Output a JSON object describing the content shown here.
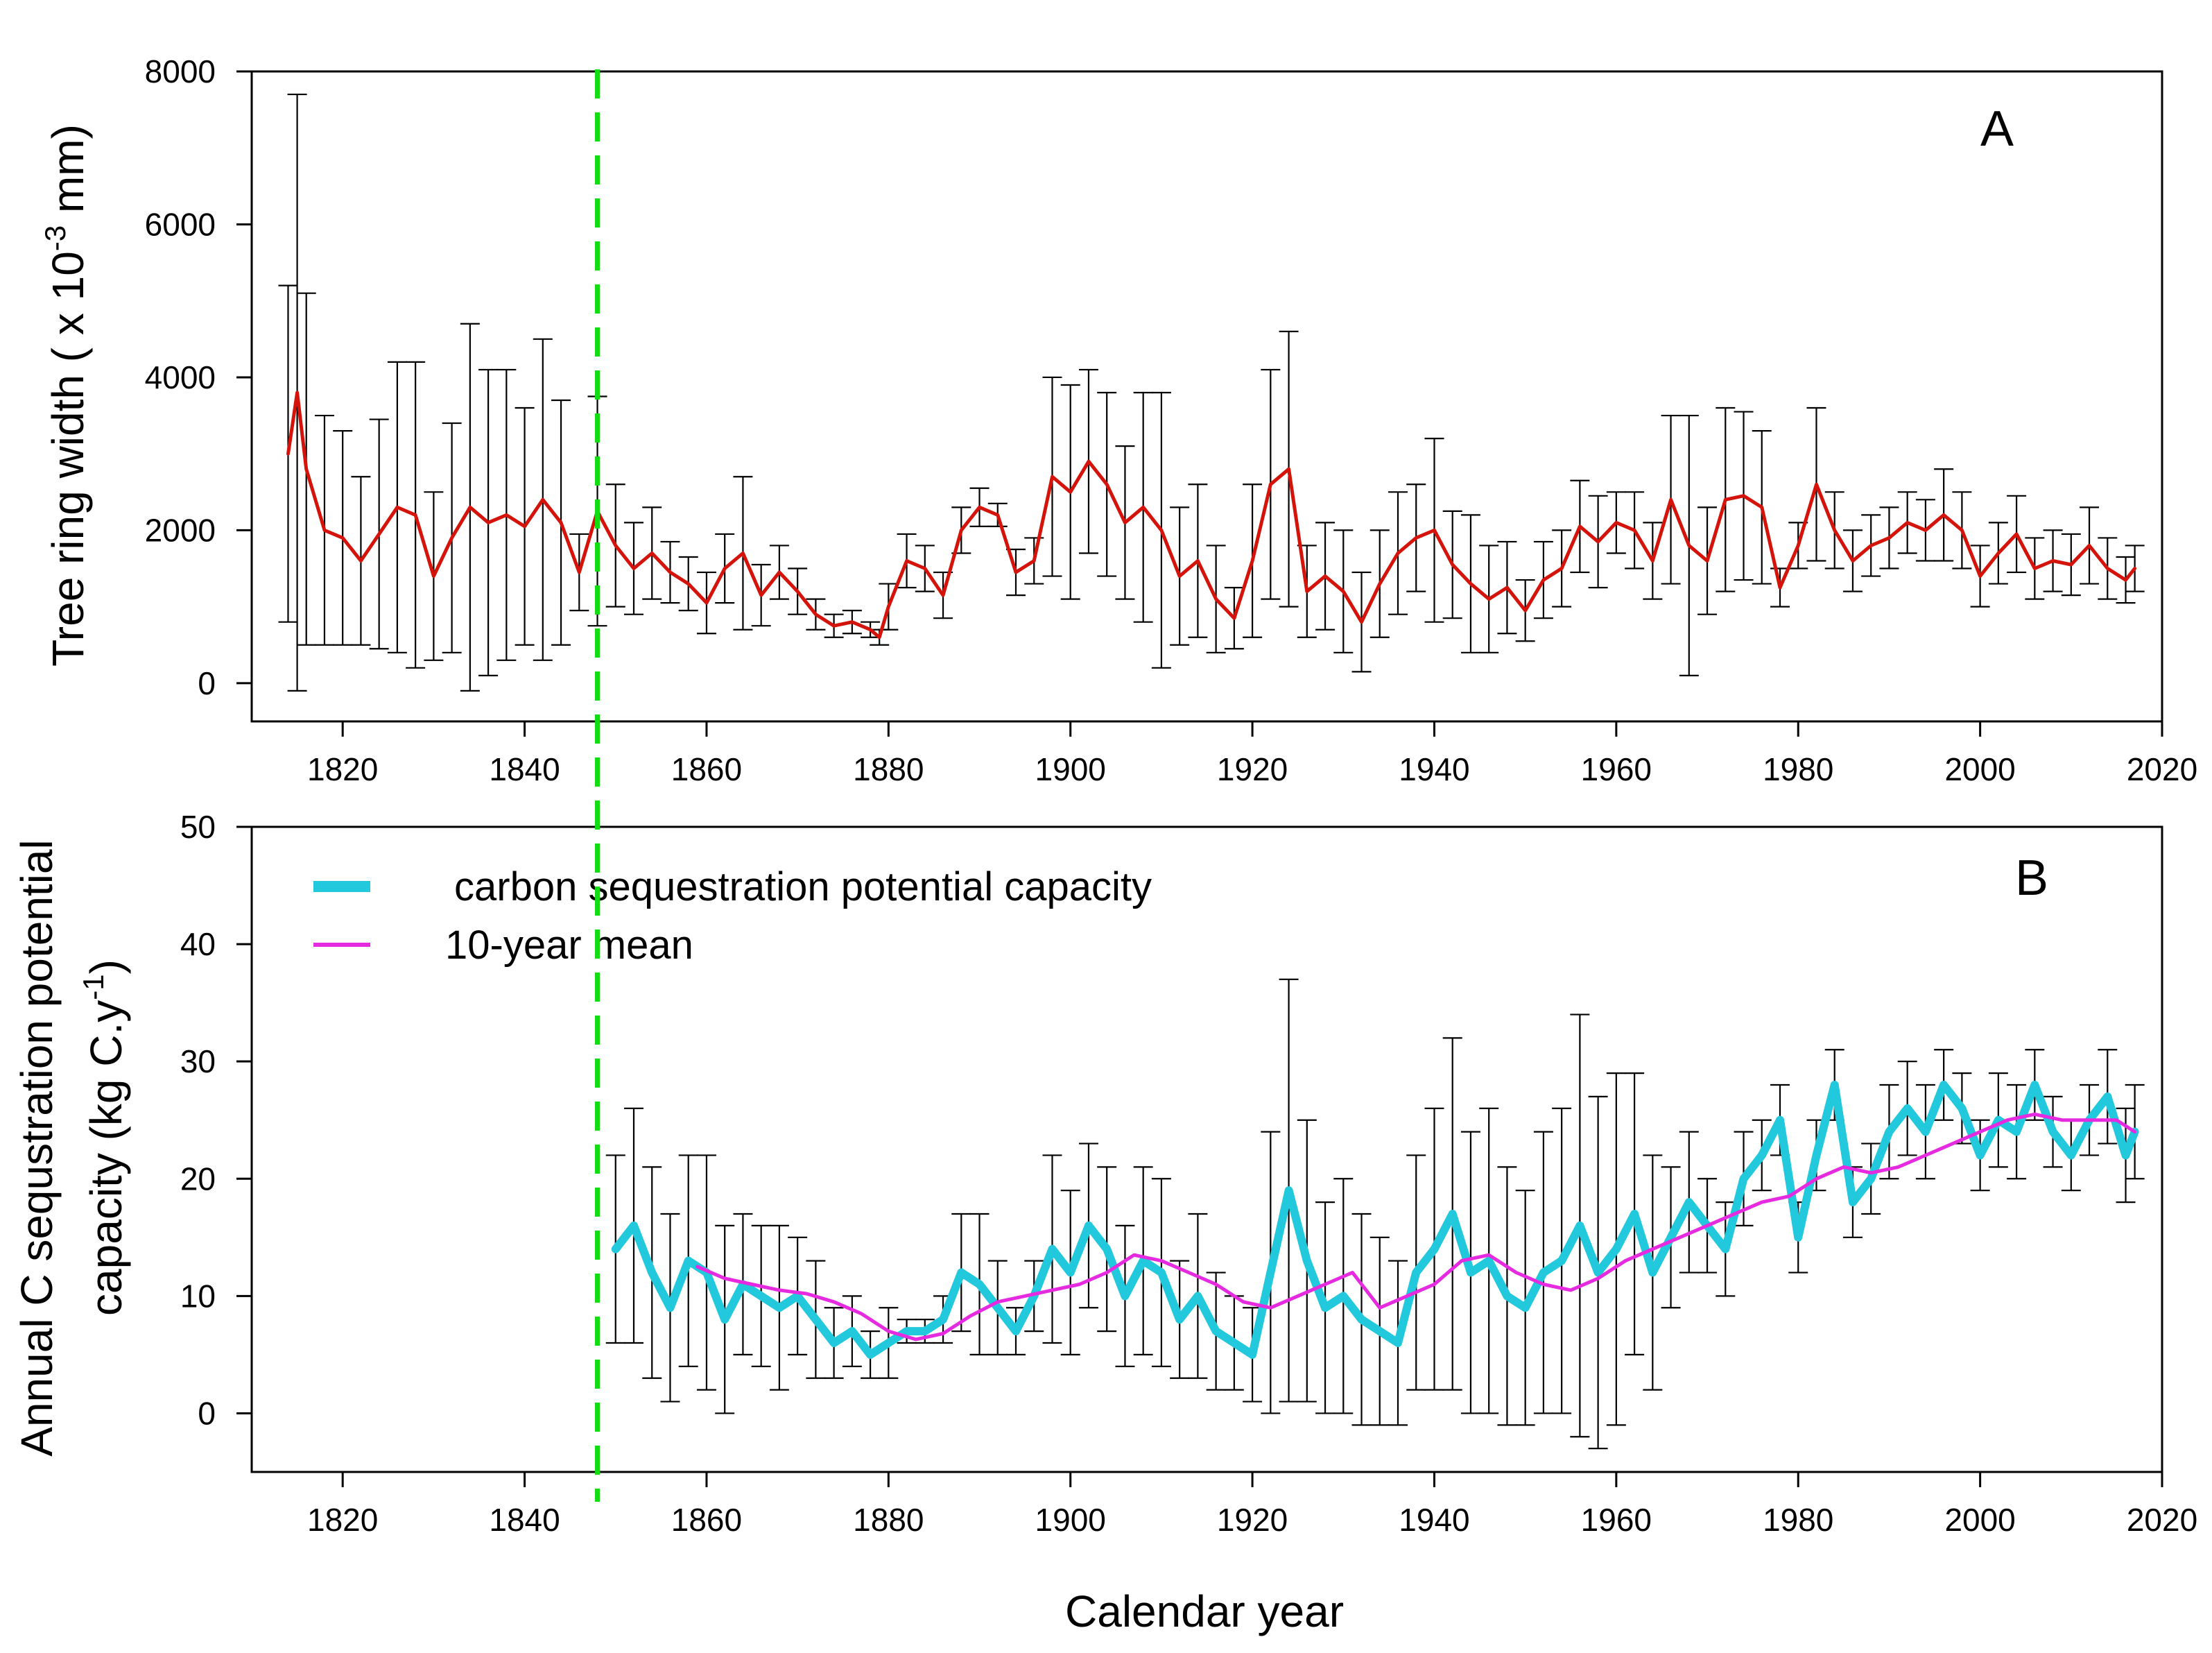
{
  "chart_data": [
    {
      "id": "A",
      "type": "line",
      "panel_label": "A",
      "title": "",
      "xlabel": "",
      "ylabel_prefix": "Tree ring width ( x 10",
      "ylabel_exponent": "-3",
      "ylabel_suffix": " mm)",
      "xlim": [
        1810,
        2020
      ],
      "ylim": [
        -500,
        8000
      ],
      "yticks": [
        "0",
        "2000",
        "4000",
        "6000",
        "8000"
      ],
      "xticks": [
        "1820",
        "1840",
        "1860",
        "1880",
        "1900",
        "1920",
        "1940",
        "1960",
        "1980",
        "2000",
        "2020"
      ],
      "marker_year": 1848,
      "series": [
        {
          "name": "Tree ring width",
          "color": "#d4140a",
          "error_color": "#000000",
          "x": [
            1814,
            1815,
            1816,
            1818,
            1820,
            1822,
            1824,
            1826,
            1828,
            1830,
            1832,
            1834,
            1836,
            1838,
            1840,
            1842,
            1844,
            1846,
            1848,
            1850,
            1852,
            1854,
            1856,
            1858,
            1860,
            1862,
            1864,
            1866,
            1868,
            1870,
            1872,
            1874,
            1876,
            1878,
            1879,
            1880,
            1882,
            1884,
            1886,
            1888,
            1890,
            1892,
            1894,
            1896,
            1898,
            1900,
            1902,
            1904,
            1906,
            1908,
            1910,
            1912,
            1914,
            1916,
            1918,
            1920,
            1922,
            1924,
            1926,
            1928,
            1930,
            1932,
            1934,
            1936,
            1938,
            1940,
            1942,
            1944,
            1946,
            1948,
            1950,
            1952,
            1954,
            1956,
            1958,
            1960,
            1962,
            1964,
            1966,
            1968,
            1970,
            1972,
            1974,
            1976,
            1978,
            1980,
            1982,
            1984,
            1986,
            1988,
            1990,
            1992,
            1994,
            1996,
            1998,
            2000,
            2002,
            2004,
            2006,
            2008,
            2010,
            2012,
            2014,
            2016,
            2017
          ],
          "y": [
            3000,
            3800,
            2800,
            2000,
            1900,
            1600,
            1950,
            2300,
            2200,
            1400,
            1900,
            2300,
            2100,
            2200,
            2050,
            2400,
            2100,
            1450,
            2250,
            1800,
            1500,
            1700,
            1450,
            1300,
            1050,
            1500,
            1700,
            1150,
            1450,
            1200,
            900,
            750,
            800,
            700,
            600,
            1000,
            1600,
            1500,
            1150,
            2000,
            2300,
            2200,
            1450,
            1600,
            2700,
            2500,
            2900,
            2600,
            2100,
            2300,
            2000,
            1400,
            1600,
            1100,
            850,
            1600,
            2600,
            2800,
            1200,
            1400,
            1200,
            800,
            1300,
            1700,
            1900,
            2000,
            1550,
            1300,
            1100,
            1250,
            950,
            1350,
            1500,
            2050,
            1850,
            2100,
            2000,
            1600,
            2400,
            1800,
            1600,
            2400,
            2450,
            2300,
            1250,
            1800,
            2600,
            2000,
            1600,
            1800,
            1900,
            2100,
            2000,
            2200,
            2000,
            1400,
            1700,
            1950,
            1500,
            1600,
            1550,
            1800,
            1500,
            1350,
            1500
          ],
          "err": [
            2200,
            3900,
            2300,
            1500,
            1400,
            1100,
            1500,
            1900,
            2000,
            1100,
            1500,
            2400,
            2000,
            1900,
            1550,
            2100,
            1600,
            500,
            1500,
            800,
            600,
            600,
            400,
            350,
            400,
            450,
            1000,
            400,
            350,
            300,
            200,
            150,
            150,
            100,
            100,
            300,
            350,
            300,
            300,
            300,
            250,
            150,
            300,
            300,
            1300,
            1400,
            1200,
            1200,
            1000,
            1500,
            1800,
            900,
            1000,
            700,
            400,
            1000,
            1500,
            1800,
            600,
            700,
            800,
            650,
            700,
            800,
            700,
            1200,
            700,
            900,
            700,
            600,
            400,
            500,
            500,
            600,
            600,
            400,
            500,
            500,
            1100,
            1700,
            700,
            1200,
            1100,
            1000,
            250,
            300,
            1000,
            500,
            400,
            400,
            400,
            400,
            400,
            600,
            500,
            400,
            400,
            500,
            400,
            400,
            400,
            500,
            400,
            300,
            300
          ]
        }
      ]
    },
    {
      "id": "B",
      "type": "line",
      "panel_label": "B",
      "title": "",
      "xlabel": "Calendar year",
      "ylabel_line1": "Annual C sequstration potential",
      "ylabel_line2_prefix": "capacity (kg C.y",
      "ylabel_line2_exponent": "-1",
      "ylabel_line2_suffix": ")",
      "xlim": [
        1810,
        2020
      ],
      "ylim": [
        -5,
        50
      ],
      "yticks": [
        "0",
        "10",
        "20",
        "30",
        "40",
        "50"
      ],
      "xticks": [
        "1820",
        "1840",
        "1860",
        "1880",
        "1900",
        "1920",
        "1940",
        "1960",
        "1980",
        "2000",
        "2020"
      ],
      "marker_year": 1848,
      "legend_position": "top-left",
      "legend": [
        {
          "label": "carbon sequestration potential capacity",
          "color": "#22c8dc"
        },
        {
          "label": "10-year mean",
          "color": "#e62ae0"
        }
      ],
      "series": [
        {
          "name": "carbon sequestration potential capacity",
          "color": "#22c8dc",
          "error_color": "#000000",
          "x": [
            1850,
            1852,
            1854,
            1856,
            1858,
            1860,
            1862,
            1864,
            1866,
            1868,
            1870,
            1872,
            1874,
            1876,
            1878,
            1880,
            1882,
            1884,
            1886,
            1888,
            1890,
            1892,
            1894,
            1896,
            1898,
            1900,
            1902,
            1904,
            1906,
            1908,
            1910,
            1912,
            1914,
            1916,
            1918,
            1920,
            1922,
            1924,
            1926,
            1928,
            1930,
            1932,
            1934,
            1936,
            1938,
            1940,
            1942,
            1944,
            1946,
            1948,
            1950,
            1952,
            1954,
            1956,
            1958,
            1960,
            1962,
            1964,
            1966,
            1968,
            1970,
            1972,
            1974,
            1976,
            1978,
            1980,
            1982,
            1984,
            1986,
            1988,
            1990,
            1992,
            1994,
            1996,
            1998,
            2000,
            2002,
            2004,
            2006,
            2008,
            2010,
            2012,
            2014,
            2016,
            2017
          ],
          "y": [
            14,
            16,
            12,
            9,
            13,
            12,
            8,
            11,
            10,
            9,
            10,
            8,
            6,
            7,
            5,
            6,
            7,
            7,
            8,
            12,
            11,
            9,
            7,
            10,
            14,
            12,
            16,
            14,
            10,
            13,
            12,
            8,
            10,
            7,
            6,
            5,
            12,
            19,
            13,
            9,
            10,
            8,
            7,
            6,
            12,
            14,
            17,
            12,
            13,
            10,
            9,
            12,
            13,
            16,
            12,
            14,
            17,
            12,
            15,
            18,
            16,
            14,
            20,
            22,
            25,
            15,
            22,
            28,
            18,
            20,
            24,
            26,
            24,
            28,
            26,
            22,
            25,
            24,
            28,
            24,
            22,
            25,
            27,
            22,
            24
          ],
          "err": [
            8,
            10,
            9,
            8,
            9,
            10,
            8,
            6,
            6,
            7,
            5,
            5,
            3,
            3,
            2,
            3,
            1,
            1,
            2,
            5,
            6,
            4,
            2,
            3,
            8,
            7,
            7,
            7,
            6,
            8,
            8,
            5,
            7,
            5,
            4,
            4,
            12,
            18,
            12,
            9,
            10,
            9,
            8,
            7,
            10,
            12,
            15,
            12,
            13,
            11,
            10,
            12,
            13,
            18,
            15,
            15,
            12,
            10,
            6,
            6,
            4,
            4,
            4,
            3,
            3,
            3,
            3,
            3,
            3,
            3,
            4,
            4,
            4,
            3,
            3,
            3,
            4,
            4,
            3,
            3,
            3,
            3,
            4,
            4,
            4
          ]
        },
        {
          "name": "10-year mean",
          "color": "#e62ae0",
          "x": [
            1859,
            1862,
            1865,
            1868,
            1871,
            1874,
            1877,
            1880,
            1883,
            1886,
            1889,
            1892,
            1895,
            1898,
            1901,
            1904,
            1907,
            1910,
            1913,
            1916,
            1919,
            1922,
            1925,
            1928,
            1931,
            1934,
            1937,
            1940,
            1943,
            1946,
            1949,
            1952,
            1955,
            1958,
            1961,
            1964,
            1967,
            1970,
            1973,
            1976,
            1979,
            1982,
            1985,
            1988,
            1991,
            1994,
            1997,
            2000,
            2003,
            2006,
            2009,
            2012,
            2015,
            2017
          ],
          "y": [
            12.5,
            11.5,
            11,
            10.5,
            10.2,
            9.5,
            8.5,
            7,
            6.3,
            6.8,
            8.3,
            9.5,
            10,
            10.5,
            11,
            12,
            13.5,
            13,
            12,
            11,
            9.5,
            9,
            10,
            11,
            12,
            9,
            10,
            11,
            13,
            13.5,
            12,
            11,
            10.5,
            11.5,
            13,
            14,
            15,
            16,
            17,
            18,
            18.5,
            20,
            21,
            20.5,
            21,
            22,
            23,
            24,
            25,
            25.5,
            25,
            25,
            25,
            24
          ]
        }
      ]
    }
  ]
}
